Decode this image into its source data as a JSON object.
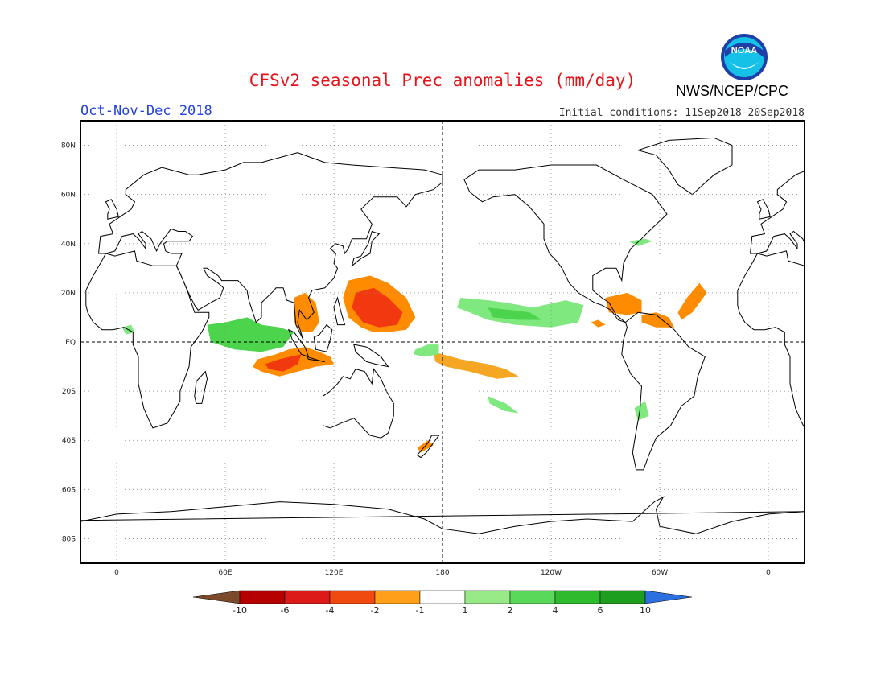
{
  "header": {
    "title": "CFSv2 seasonal Prec anomalies (mm/day)",
    "period": "Oct-Nov-Dec 2018",
    "initial_conditions": "Initial conditions: 11Sep2018-20Sep2018",
    "agency": "NWS/NCEP/CPC",
    "logo_text": "NOAA"
  },
  "map": {
    "lat_labels": [
      "80N",
      "60N",
      "40N",
      "20N",
      "EQ",
      "20S",
      "40S",
      "60S",
      "80S"
    ],
    "lat_values": [
      80,
      60,
      40,
      20,
      0,
      -20,
      -40,
      -60,
      -80
    ],
    "lon_labels": [
      "0",
      "60E",
      "120E",
      "180",
      "120W",
      "60W",
      "0"
    ],
    "lon_values": [
      0,
      60,
      120,
      180,
      240,
      300,
      360
    ],
    "lon_range": [
      -20,
      380
    ],
    "lat_range": [
      -90,
      90
    ],
    "grid": "dotted",
    "colors": {
      "land_outline": "#000000",
      "dry_strong": "#f2380e",
      "dry_mod": "#ff8c00",
      "dry_weak": "#f5a623",
      "wet_weak": "#7fe87f",
      "wet_mod": "#4dd44d",
      "wet_strong": "#22aa22"
    }
  },
  "colorbar": {
    "labels": [
      "-10",
      "-6",
      "-4",
      "-2",
      "-1",
      "1",
      "2",
      "4",
      "6",
      "10"
    ],
    "colors": [
      "#7a4a2a",
      "#b40000",
      "#dd1a1a",
      "#f04a10",
      "#ff9f1a",
      "#ffffff",
      "#98ea88",
      "#5ad85a",
      "#2dba2d",
      "#1e9e1e",
      "#2b6fe0"
    ]
  }
}
